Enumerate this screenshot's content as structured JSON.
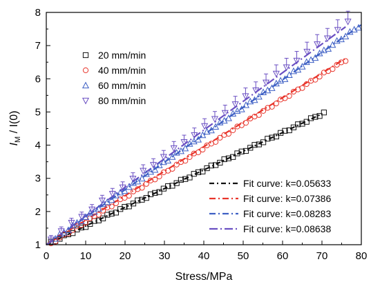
{
  "chart_data": {
    "type": "scatter",
    "xlabel": "Stress/MPa",
    "ylabel_main": "I",
    "ylabel_sub": "M",
    "ylabel_rest": " / I(0)",
    "xlim": [
      0,
      80
    ],
    "ylim": [
      1,
      8
    ],
    "xticks": [
      "0",
      "10",
      "20",
      "30",
      "40",
      "50",
      "60",
      "70",
      "80"
    ],
    "yticks": [
      "1",
      "2",
      "3",
      "4",
      "5",
      "6",
      "7",
      "8"
    ],
    "legend_placement": "upper-left",
    "fit_legend_placement": "lower-right",
    "series": [
      {
        "name": "20 mm/min",
        "marker": "square",
        "color": "#111111",
        "x_max": 70.5,
        "errorbars": false
      },
      {
        "name": "40 mm/min",
        "marker": "circle",
        "color": "#e8352b",
        "x_max": 76.0,
        "errorbars": false
      },
      {
        "name": "60 mm/min",
        "marker": "triangle-up",
        "color": "#3d5fc4",
        "x_max": 80.0,
        "errorbars": false
      },
      {
        "name": "80 mm/min",
        "marker": "triangle-down",
        "color": "#6a4fc2",
        "x_max": 77.0,
        "errorbars": true
      }
    ],
    "fits": [
      {
        "name": "Fit curve: k=0.05633",
        "k": 0.05633,
        "color": "#111111",
        "x_max": 70.0
      },
      {
        "name": "Fit curve: k=0.07386",
        "k": 0.07386,
        "color": "#e8352b",
        "x_max": 76.0
      },
      {
        "name": "Fit curve: k=0.08283",
        "k": 0.08283,
        "color": "#3d5fc4",
        "x_max": 80.0
      },
      {
        "name": "Fit curve: k=0.08638",
        "k": 0.08638,
        "color": "#6a4fc2",
        "x_max": 76.0
      }
    ]
  }
}
